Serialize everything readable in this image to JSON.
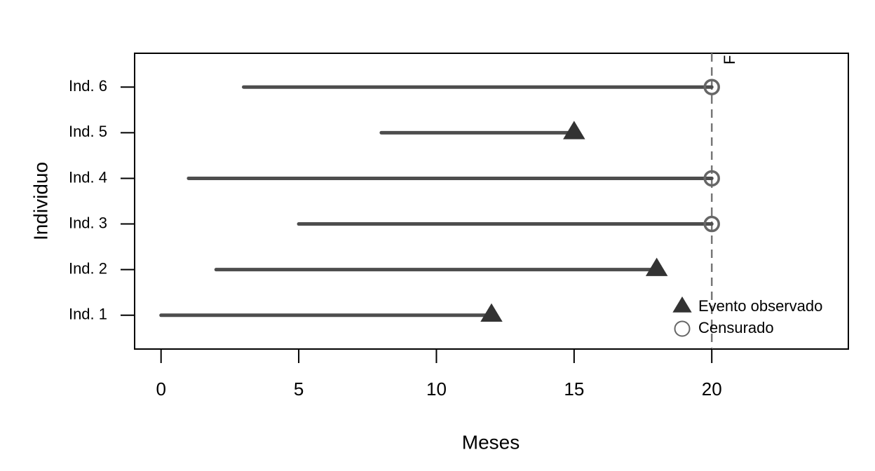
{
  "chart_data": {
    "type": "segment",
    "xlabel": "Meses",
    "ylabel": "Individuo",
    "categories": [
      "Ind. 1",
      "Ind. 2",
      "Ind. 3",
      "Ind. 4",
      "Ind. 5",
      "Ind. 6"
    ],
    "start": [
      0,
      2,
      5,
      1,
      8,
      3
    ],
    "end": [
      12,
      18,
      20,
      20,
      15,
      20
    ],
    "event": [
      1,
      1,
      0,
      0,
      1,
      0
    ],
    "line_color": "#4d4d4d",
    "legend": [
      {
        "name": "Evento observado",
        "marker": "triangle",
        "color": "#333333"
      },
      {
        "name": "Censurado",
        "marker": "circle",
        "color": "#666666"
      }
    ],
    "vline": {
      "x": 20,
      "label": "F",
      "color": "#777777"
    },
    "xlim": [
      -0.96,
      24.96
    ],
    "xticks": [
      0,
      5,
      10,
      15,
      20
    ]
  }
}
